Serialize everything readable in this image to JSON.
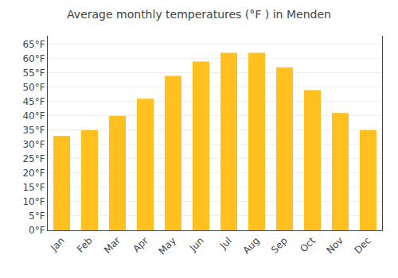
{
  "chart_data": {
    "type": "bar",
    "title": "Average monthly temperatures (°F ) in Menden",
    "categories": [
      "Jan",
      "Feb",
      "Mar",
      "Apr",
      "May",
      "Jun",
      "Jul",
      "Aug",
      "Sep",
      "Oct",
      "Nov",
      "Dec"
    ],
    "values": [
      33,
      35,
      40,
      46,
      54,
      59,
      62,
      62,
      57,
      49,
      41,
      35
    ],
    "color": "#FFC020",
    "ylim": [
      0,
      68
    ],
    "yticks": [
      {
        "value": 0,
        "label": "0°F"
      },
      {
        "value": 5,
        "label": "5°F"
      },
      {
        "value": 10,
        "label": "10°F"
      },
      {
        "value": 15,
        "label": "15°F"
      },
      {
        "value": 20,
        "label": "20°F"
      },
      {
        "value": 25,
        "label": "25°F"
      },
      {
        "value": 30,
        "label": "30°F"
      },
      {
        "value": 35,
        "label": "35°F"
      },
      {
        "value": 40,
        "label": "40°F"
      },
      {
        "value": 45,
        "label": "45°F"
      },
      {
        "value": 50,
        "label": "50°F"
      },
      {
        "value": 55,
        "label": "55°F"
      },
      {
        "value": 60,
        "label": "60°F"
      },
      {
        "value": 65,
        "label": "65°F"
      }
    ],
    "grid": true
  }
}
